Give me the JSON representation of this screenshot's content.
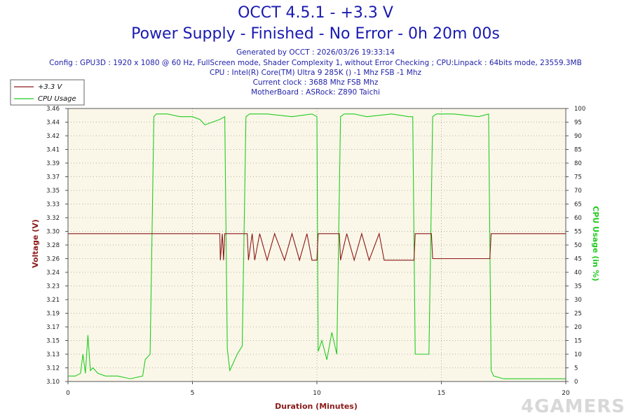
{
  "header": {
    "title": "OCCT 4.5.1 - +3.3 V",
    "subtitle": "Power Supply - Finished - No Error - 0h 20m 00s",
    "generated": "Generated by OCCT : 2026/03/26 19:33:14",
    "config": "Config : GPU3D : 1920 x 1080 @ 60 Hz, FullScreen mode, Shader Complexity 1, without Error Checking ; CPU:Linpack : 64bits mode, 23559.3MB",
    "cpu": "CPU : Intel(R) Core(TM) Ultra 9 285K () -1 Mhz FSB -1 Mhz",
    "clock": "Current clock : 3688 Mhz FSB  Mhz",
    "motherboard": "MotherBoard : ASRock: Z890 Taichi"
  },
  "watermark": "4GAMERS",
  "colors": {
    "voltage": "#8b1a1a",
    "cpu": "#22cc22",
    "plot_bg": "#fbf7e8"
  },
  "chart_data": {
    "type": "line",
    "title": "OCCT 4.5.1 - +3.3 V",
    "xlabel": "Duration (Minutes)",
    "ylabel": "Voltage (V)",
    "y2label": "CPU Usage (in %)",
    "xlim": [
      0,
      20
    ],
    "ylim": [
      3.1,
      3.46
    ],
    "y2lim": [
      0,
      100
    ],
    "x_ticks": [
      "0",
      "5",
      "10",
      "15",
      "20"
    ],
    "y_ticks": [
      "3.10",
      "3.12",
      "3.13",
      "3.15",
      "3.17",
      "3.19",
      "3.21",
      "3.23",
      "3.24",
      "3.26",
      "3.28",
      "3.30",
      "3.32",
      "3.33",
      "3.35",
      "3.37",
      "3.39",
      "3.41",
      "3.42",
      "3.44",
      "3.46"
    ],
    "y2_ticks": [
      "0",
      "5",
      "10",
      "15",
      "20",
      "25",
      "30",
      "35",
      "40",
      "45",
      "50",
      "55",
      "60",
      "65",
      "70",
      "75",
      "80",
      "85",
      "90",
      "95",
      "100"
    ],
    "legend": {
      "position": "top-left"
    },
    "grid": true,
    "series": [
      {
        "name": "+3.3 V",
        "axis": "left",
        "x": [
          0,
          6.1,
          6.12,
          6.2,
          6.25,
          6.3,
          7.2,
          7.25,
          7.4,
          7.5,
          7.7,
          8.0,
          8.3,
          8.7,
          9.0,
          9.3,
          9.6,
          9.8,
          10.0,
          10.05,
          10.2,
          10.9,
          10.95,
          11.2,
          11.5,
          11.8,
          12.1,
          12.5,
          12.7,
          12.8,
          13.5,
          13.9,
          13.95,
          14.6,
          14.65,
          16.95,
          17.0,
          20
        ],
        "y": [
          3.295,
          3.295,
          3.26,
          3.295,
          3.26,
          3.295,
          3.295,
          3.26,
          3.295,
          3.26,
          3.295,
          3.26,
          3.295,
          3.26,
          3.295,
          3.26,
          3.295,
          3.26,
          3.26,
          3.295,
          3.295,
          3.295,
          3.26,
          3.295,
          3.26,
          3.295,
          3.26,
          3.295,
          3.26,
          3.26,
          3.26,
          3.26,
          3.295,
          3.295,
          3.262,
          3.262,
          3.295,
          3.295
        ]
      },
      {
        "name": "CPU Usage",
        "axis": "right",
        "x": [
          0,
          0.3,
          0.5,
          0.6,
          0.7,
          0.8,
          0.9,
          1.0,
          1.2,
          1.5,
          2.0,
          2.5,
          3.0,
          3.1,
          3.3,
          3.45,
          3.55,
          4.0,
          4.5,
          5.0,
          5.3,
          5.5,
          5.8,
          6.1,
          6.3,
          6.4,
          6.5,
          6.8,
          7.0,
          7.15,
          7.3,
          7.5,
          8.0,
          9.0,
          9.8,
          10.0,
          10.05,
          10.2,
          10.4,
          10.6,
          10.8,
          10.95,
          11.1,
          11.5,
          12.0,
          13.0,
          13.7,
          13.85,
          13.95,
          14.5,
          14.65,
          14.8,
          15.5,
          16.5,
          16.9,
          17.0,
          17.1,
          17.5,
          18.0,
          19.0,
          20.0
        ],
        "y": [
          2,
          2,
          3,
          10,
          3,
          17,
          4,
          5,
          3,
          2,
          2,
          1,
          2,
          8,
          10,
          97,
          98,
          98,
          97,
          97,
          96,
          94,
          95,
          96,
          97,
          12,
          4,
          10,
          13,
          97,
          98,
          98,
          98,
          97,
          98,
          97,
          11,
          15,
          8,
          18,
          10,
          97,
          98,
          98,
          97,
          98,
          97,
          97,
          10,
          10,
          97,
          98,
          98,
          97,
          98,
          4,
          2,
          1,
          1,
          1,
          1
        ]
      }
    ]
  }
}
